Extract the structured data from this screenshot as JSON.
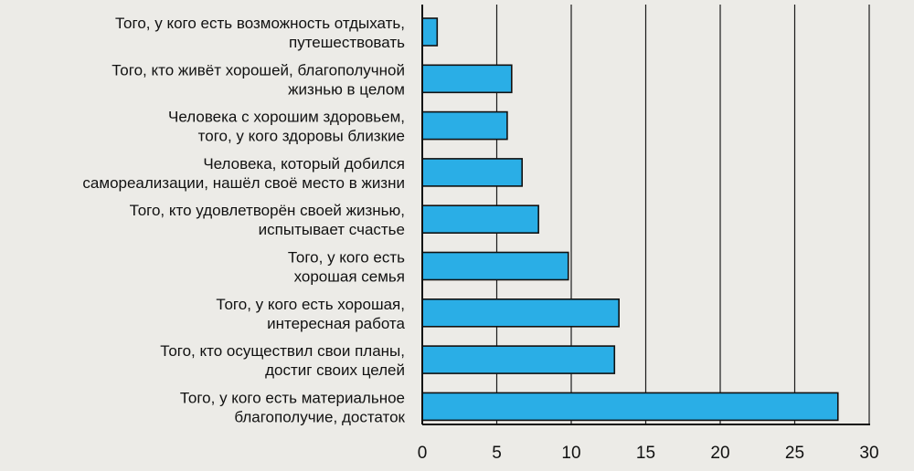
{
  "chart_data": {
    "type": "bar",
    "orientation": "horizontal",
    "title": "",
    "xlabel": "",
    "ylabel": "",
    "xlim": [
      0,
      30
    ],
    "x_ticks": [
      0,
      5,
      10,
      15,
      20,
      25,
      30
    ],
    "grid": "vertical",
    "legend": "none",
    "bar_color": "#2aaee6",
    "categories": [
      [
        "Того, у кого есть возможность отдыхать,",
        "путешествовать"
      ],
      [
        "Того, кто живёт хорошей, благополучной",
        "жизнью в целом"
      ],
      [
        "Человека с хорошим здоровьем,",
        "того, у кого здоровы близкие"
      ],
      [
        "Человека, который добился",
        "самореализации, нашёл своё место в жизни"
      ],
      [
        "Того, кто удовлетворён своей жизнью,",
        "испытывает счастье"
      ],
      [
        "Того, у кого есть",
        "хорошая семья"
      ],
      [
        "Того, у кого есть хорошая,",
        "интересная работа"
      ],
      [
        "Того, кто осуществил свои планы,",
        "достиг своих целей"
      ],
      [
        "Того, у кого есть материальное",
        "благополучие, достаток"
      ]
    ],
    "values": [
      1,
      6,
      5.7,
      6.7,
      7.8,
      9.8,
      13.2,
      12.9,
      27.9
    ]
  }
}
